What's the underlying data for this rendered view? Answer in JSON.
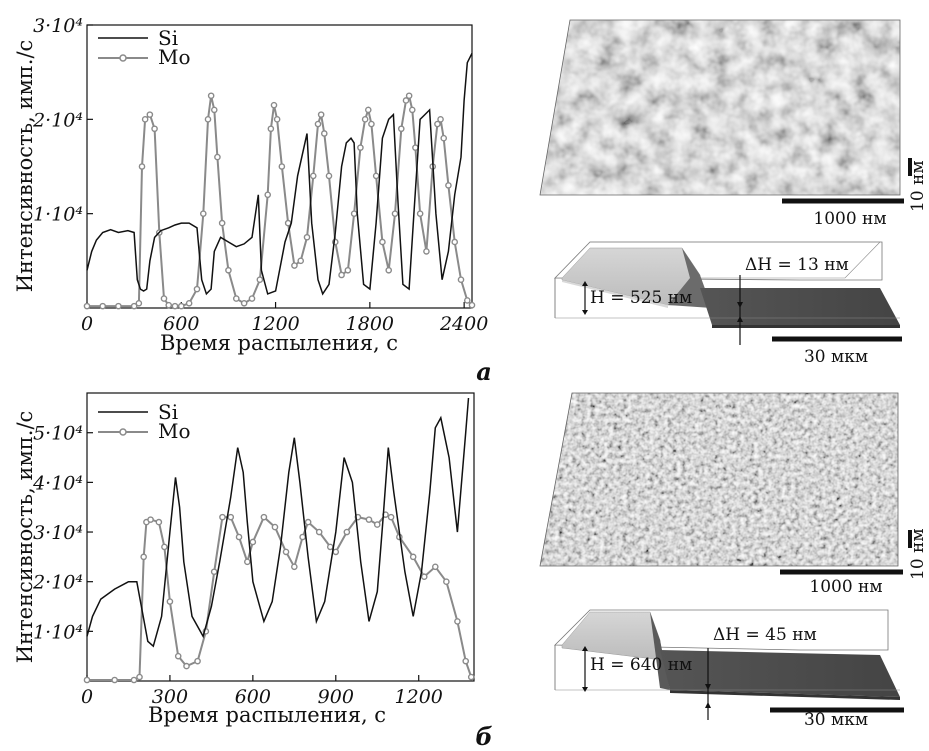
{
  "chart_data": [
    {
      "type": "line",
      "panel": "a",
      "caption": "а",
      "xlabel": "Время распыления, с",
      "ylabel": "Интенсивность, имп./с",
      "xlim": [
        0,
        2450
      ],
      "ylim": [
        0,
        30000
      ],
      "xticks": [
        {
          "v": 0,
          "label": "0"
        },
        {
          "v": 600,
          "label": "600"
        },
        {
          "v": 1200,
          "label": "1200"
        },
        {
          "v": 1800,
          "label": "1800"
        },
        {
          "v": 2400,
          "label": "2400"
        }
      ],
      "yticks": [
        {
          "v": 10000,
          "label": "1·10⁴"
        },
        {
          "v": 20000,
          "label": "2·10⁴"
        },
        {
          "v": 30000,
          "label": "3·10⁴"
        }
      ],
      "legend_position": "top-left",
      "series": [
        {
          "name": "Si",
          "color": "#111111",
          "x": [
            0,
            30,
            60,
            100,
            150,
            200,
            260,
            300,
            320,
            340,
            360,
            380,
            400,
            430,
            470,
            520,
            560,
            600,
            650,
            700,
            730,
            760,
            790,
            810,
            850,
            900,
            950,
            1000,
            1050,
            1090,
            1110,
            1150,
            1200,
            1260,
            1300,
            1340,
            1380,
            1400,
            1430,
            1470,
            1500,
            1540,
            1580,
            1620,
            1650,
            1680,
            1700,
            1720,
            1760,
            1800,
            1840,
            1880,
            1920,
            1950,
            1980,
            2010,
            2050,
            2080,
            2120,
            2150,
            2180,
            2220,
            2260,
            2300,
            2340,
            2380,
            2400,
            2420,
            2450
          ],
          "y": [
            4000,
            6000,
            7200,
            8000,
            8300,
            8000,
            8200,
            8000,
            3000,
            2000,
            1800,
            2000,
            5000,
            7500,
            8200,
            8500,
            8800,
            9000,
            9000,
            8500,
            3000,
            1500,
            2000,
            6000,
            7500,
            7000,
            6500,
            6800,
            7500,
            12000,
            4000,
            1500,
            1800,
            7000,
            9000,
            14000,
            17000,
            18500,
            9000,
            3000,
            1500,
            2500,
            8000,
            15000,
            17500,
            18000,
            17500,
            10000,
            2500,
            2000,
            9000,
            18000,
            20000,
            20500,
            11000,
            2500,
            2000,
            10000,
            20000,
            20500,
            21000,
            10000,
            3000,
            6000,
            12000,
            16000,
            22000,
            26000,
            27000
          ]
        },
        {
          "name": "Mo",
          "color": "#8a8a8a",
          "markers": true,
          "x": [
            0,
            100,
            200,
            300,
            330,
            350,
            370,
            400,
            430,
            460,
            490,
            520,
            560,
            600,
            650,
            700,
            740,
            770,
            790,
            810,
            830,
            860,
            900,
            950,
            1000,
            1050,
            1100,
            1150,
            1170,
            1190,
            1210,
            1240,
            1280,
            1320,
            1360,
            1400,
            1440,
            1470,
            1490,
            1510,
            1540,
            1580,
            1620,
            1660,
            1700,
            1740,
            1770,
            1790,
            1810,
            1840,
            1880,
            1920,
            1960,
            2000,
            2030,
            2050,
            2070,
            2090,
            2120,
            2160,
            2200,
            2230,
            2250,
            2270,
            2300,
            2340,
            2380,
            2420,
            2450
          ],
          "y": [
            200,
            200,
            200,
            200,
            500,
            15000,
            20000,
            20500,
            19000,
            8000,
            1000,
            300,
            200,
            200,
            500,
            2000,
            10000,
            20000,
            22500,
            21000,
            16000,
            9000,
            4000,
            1000,
            500,
            1000,
            3000,
            12000,
            19000,
            21500,
            20000,
            15000,
            9000,
            4500,
            5000,
            7500,
            14000,
            19500,
            20500,
            18500,
            14000,
            7000,
            3500,
            4000,
            10000,
            17000,
            20000,
            21000,
            19500,
            14000,
            7000,
            4000,
            10000,
            19000,
            22000,
            22500,
            21000,
            17000,
            10000,
            6000,
            15000,
            19500,
            20000,
            18000,
            13000,
            7000,
            3000,
            800,
            300
          ]
        }
      ]
    },
    {
      "type": "line",
      "panel": "b",
      "caption": "б",
      "xlabel": "Время распыления, с",
      "ylabel": "Интенсивность, имп./с",
      "xlim": [
        0,
        1400
      ],
      "ylim": [
        0,
        58000
      ],
      "xticks": [
        {
          "v": 0,
          "label": "0"
        },
        {
          "v": 300,
          "label": "300"
        },
        {
          "v": 600,
          "label": "600"
        },
        {
          "v": 900,
          "label": "900"
        },
        {
          "v": 1200,
          "label": "1200"
        }
      ],
      "yticks": [
        {
          "v": 10000,
          "label": "1·10⁴"
        },
        {
          "v": 20000,
          "label": "2·10⁴"
        },
        {
          "v": 30000,
          "label": "3·10⁴"
        },
        {
          "v": 40000,
          "label": "4·10⁴"
        },
        {
          "v": 50000,
          "label": "5·10⁴"
        }
      ],
      "legend_position": "top-left",
      "series": [
        {
          "name": "Si",
          "color": "#111111",
          "x": [
            0,
            20,
            50,
            100,
            150,
            180,
            200,
            220,
            240,
            270,
            300,
            320,
            335,
            350,
            380,
            420,
            450,
            480,
            520,
            545,
            565,
            580,
            600,
            640,
            670,
            700,
            730,
            750,
            770,
            800,
            830,
            860,
            900,
            930,
            960,
            990,
            1020,
            1050,
            1070,
            1090,
            1110,
            1150,
            1180,
            1210,
            1240,
            1260,
            1280,
            1310,
            1340,
            1370,
            1380
          ],
          "y": [
            9000,
            13000,
            16500,
            18500,
            20000,
            20000,
            14000,
            8000,
            7000,
            13000,
            30000,
            41000,
            35000,
            24000,
            13000,
            9000,
            15000,
            24000,
            37000,
            47000,
            42000,
            32000,
            20000,
            12000,
            16000,
            27000,
            42000,
            49000,
            40000,
            25000,
            12000,
            16000,
            30000,
            45000,
            40000,
            24000,
            12000,
            18000,
            32000,
            47000,
            38000,
            22000,
            13000,
            22000,
            38000,
            51000,
            53000,
            45000,
            30000,
            50000,
            57000
          ]
        },
        {
          "name": "Mo",
          "color": "#8a8a8a",
          "markers": true,
          "x": [
            0,
            100,
            170,
            190,
            205,
            215,
            230,
            260,
            280,
            300,
            330,
            360,
            400,
            430,
            460,
            490,
            520,
            550,
            580,
            600,
            640,
            680,
            720,
            750,
            780,
            800,
            840,
            880,
            900,
            940,
            980,
            1020,
            1050,
            1080,
            1100,
            1130,
            1180,
            1220,
            1260,
            1300,
            1340,
            1370,
            1390
          ],
          "y": [
            200,
            200,
            200,
            800,
            25000,
            32000,
            32500,
            32000,
            27000,
            16000,
            5000,
            3000,
            4000,
            10000,
            22000,
            33000,
            33000,
            29000,
            24000,
            28000,
            33000,
            31000,
            26000,
            23000,
            29000,
            32000,
            30000,
            27000,
            26000,
            30000,
            33000,
            32500,
            31500,
            33500,
            33000,
            29000,
            25000,
            21000,
            23000,
            20000,
            12000,
            4000,
            800
          ]
        }
      ]
    }
  ],
  "images": [
    {
      "panel": "a",
      "type": "surface-3d",
      "scale_bar": "1000 нм",
      "z_scale": "10 нм"
    },
    {
      "panel": "a",
      "type": "step-profile",
      "height_label": "H = 525 нм",
      "delta_label": "ΔH = 13 нм",
      "scale_bar": "30 мкм"
    },
    {
      "panel": "b",
      "type": "surface-3d",
      "scale_bar": "1000 нм",
      "z_scale": "10 нм"
    },
    {
      "panel": "b",
      "type": "step-profile",
      "height_label": "H = 640 нм",
      "delta_label": "ΔH = 45 нм",
      "scale_bar": "30 мкм"
    }
  ]
}
